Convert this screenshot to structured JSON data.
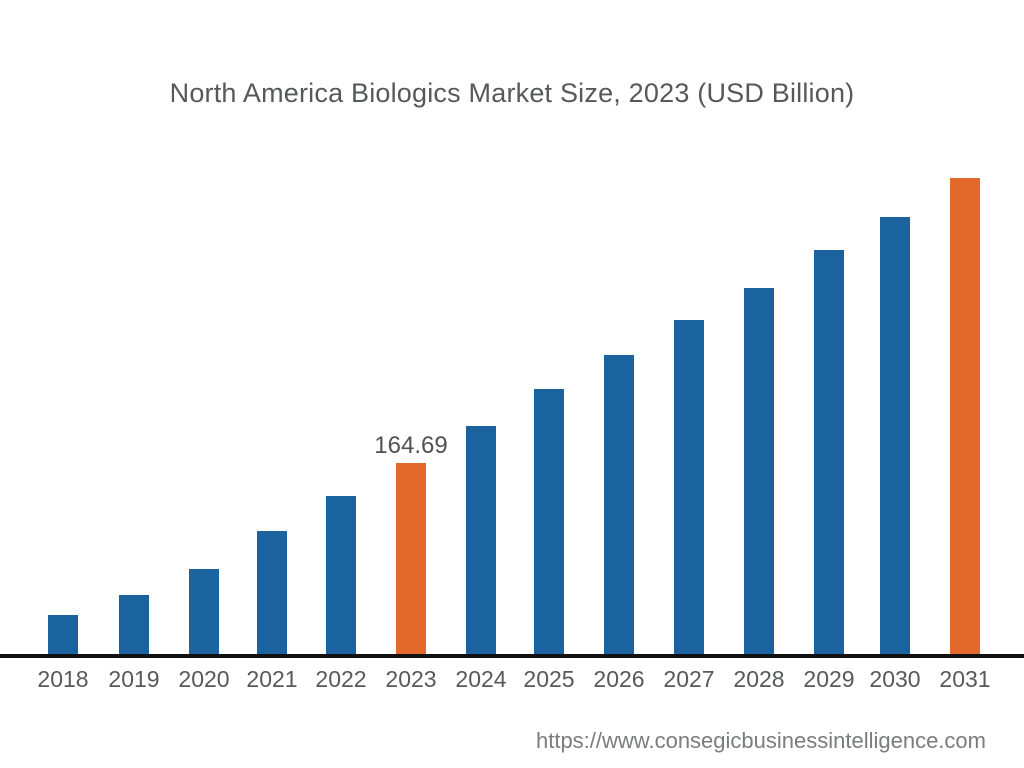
{
  "title": "North America Biologics Market Size, 2023 (USD Billion)",
  "source_url": "https://www.consegicbusinessintelligence.com",
  "colors": {
    "bar_default": "#1B639E",
    "bar_highlight": "#E2692B",
    "axis_line": "#111111",
    "title_text": "#57585A",
    "label_text": "#58595B",
    "source_text": "#7B7C7E"
  },
  "chart_data": {
    "type": "bar",
    "title": "North America Biologics Market Size, 2023 (USD Billion)",
    "xlabel": "",
    "ylabel": "",
    "categories": [
      "2018",
      "2019",
      "2020",
      "2021",
      "2022",
      "2023",
      "2024",
      "2025",
      "2026",
      "2027",
      "2028",
      "2029",
      "2030",
      "2031"
    ],
    "values": [
      36.3,
      53.2,
      75.2,
      107.3,
      136.8,
      164.69,
      195.9,
      227.2,
      255.9,
      285.5,
      312.5,
      344.6,
      372.4,
      405.4
    ],
    "highlight_indices": [
      5,
      13
    ],
    "data_label": {
      "index": 5,
      "text": "164.69"
    },
    "ylim": [
      0,
      440
    ],
    "grid": false,
    "legend": "none",
    "note": "values estimated from bar heights; only 2023 value 164.69 is labeled on chart"
  }
}
